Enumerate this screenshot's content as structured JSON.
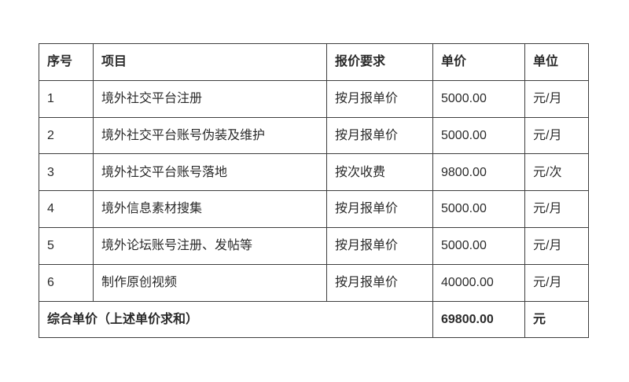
{
  "table": {
    "headers": {
      "no": "序号",
      "item": "项目",
      "requirement": "报价要求",
      "price": "单价",
      "unit": "单位"
    },
    "rows": [
      {
        "no": "1",
        "item": "境外社交平台注册",
        "requirement": "按月报单价",
        "price": "5000.00",
        "unit": "元/月"
      },
      {
        "no": "2",
        "item": "境外社交平台账号伪装及维护",
        "requirement": "按月报单价",
        "price": "5000.00",
        "unit": "元/月"
      },
      {
        "no": "3",
        "item": "境外社交平台账号落地",
        "requirement": "按次收费",
        "price": "9800.00",
        "unit": "元/次"
      },
      {
        "no": "4",
        "item": "境外信息素材搜集",
        "requirement": "按月报单价",
        "price": "5000.00",
        "unit": "元/月"
      },
      {
        "no": "5",
        "item": "境外论坛账号注册、发帖等",
        "requirement": "按月报单价",
        "price": "5000.00",
        "unit": "元/月"
      },
      {
        "no": "6",
        "item": "制作原创视频",
        "requirement": "按月报单价",
        "price": "40000.00",
        "unit": "元/月"
      }
    ],
    "total": {
      "label": "综合单价（上述单价求和）",
      "price": "69800.00",
      "unit": "元"
    }
  },
  "colors": {
    "border": "#3e3e3e",
    "text": "#2a2a2a",
    "background": "#ffffff"
  }
}
